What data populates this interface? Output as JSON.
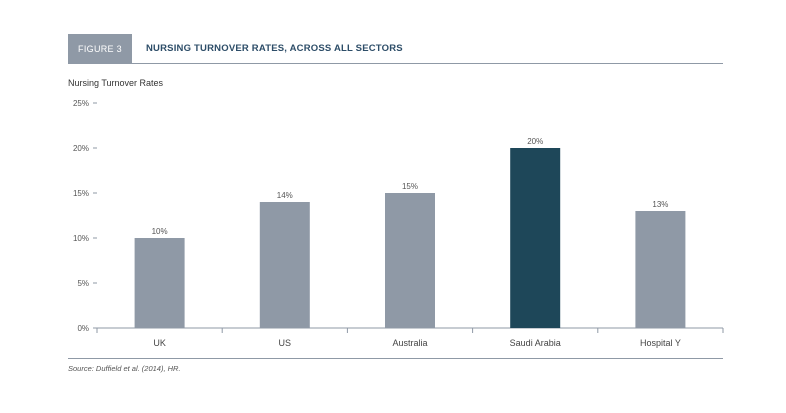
{
  "figure": {
    "tag": "FIGURE 3",
    "title": "NURSING TURNOVER RATES, ACROSS ALL SECTORS"
  },
  "chart_label": "Nursing Turnover Rates",
  "source": "Source: Duffield et al. (2014), HR.",
  "colors": {
    "default_bar": "#8f99a6",
    "highlight_bar": "#1e4759",
    "axis": "#8f99a6",
    "header_tag": "#8f99a6",
    "title_text": "#2d4d68"
  },
  "chart_data": {
    "type": "bar",
    "title": "Nursing Turnover Rates",
    "categories": [
      "UK",
      "US",
      "Australia",
      "Saudi Arabia",
      "Hospital Y"
    ],
    "values": [
      10,
      14,
      15,
      20,
      13
    ],
    "data_labels": [
      "10%",
      "14%",
      "15%",
      "20%",
      "13%"
    ],
    "highlight_index": 3,
    "ylim": [
      0,
      25
    ],
    "yticks": [
      0,
      5,
      10,
      15,
      20,
      25
    ],
    "ytick_labels": [
      "0%",
      "5%",
      "10%",
      "15%",
      "20%",
      "25%"
    ],
    "xlabel": "",
    "ylabel": "",
    "grid": false
  }
}
